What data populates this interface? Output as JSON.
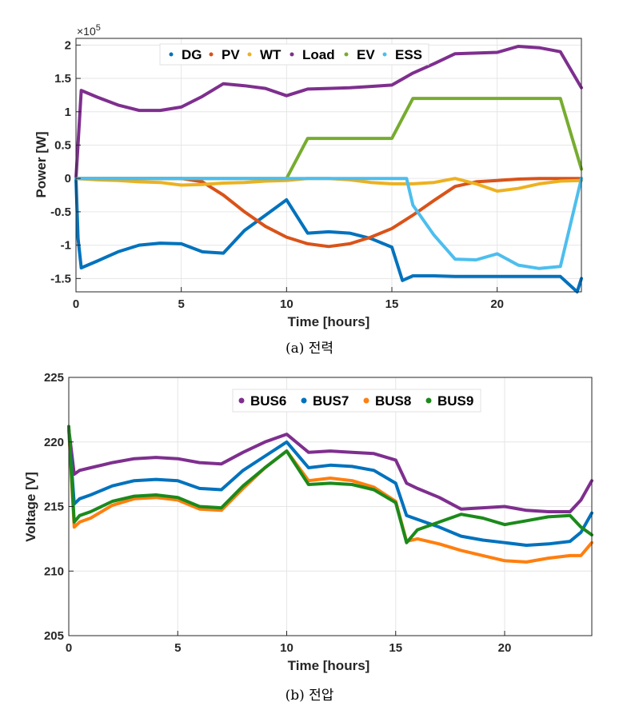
{
  "colors": {
    "blue": "#0072BD",
    "orange": "#D95319",
    "yellow": "#EDB120",
    "purple": "#7E2F8E",
    "green": "#77AC30",
    "cyan": "#4DBEEE",
    "bus_orange": "#FF7F0E",
    "bus_green": "#1B8A1B"
  },
  "chart_data": [
    {
      "type": "line",
      "caption": "(a) 전력",
      "xlabel": "Time [hours]",
      "ylabel": "Power [W]",
      "exponent": "×10",
      "exponent_power": "5",
      "xlim": [
        0,
        24
      ],
      "ylim": [
        -1.7,
        2.1
      ],
      "xticks": [
        0,
        5,
        10,
        15,
        20
      ],
      "xtick_labels": [
        "0",
        "5",
        "10",
        "15",
        "20"
      ],
      "yticks": [
        -1.5,
        -1,
        -0.5,
        0,
        0.5,
        1,
        1.5,
        2
      ],
      "ytick_labels": [
        "-1.5",
        "-1",
        "-0.5",
        "0",
        "0.5",
        "1",
        "1.5",
        "2"
      ],
      "legend_position": "top",
      "grid": true,
      "series": [
        {
          "name": "DG",
          "color": "blue",
          "x": [
            0,
            0.1,
            0.25,
            1,
            2,
            3,
            4,
            5,
            6,
            7,
            8,
            9,
            10,
            11,
            12,
            13,
            14,
            15,
            15.5,
            16,
            17,
            18,
            19,
            20,
            21,
            22,
            23,
            23.8,
            24
          ],
          "y": [
            0,
            -0.9,
            -1.34,
            -1.24,
            -1.1,
            -1.0,
            -0.97,
            -0.98,
            -1.1,
            -1.12,
            -0.78,
            -0.55,
            -0.32,
            -0.82,
            -0.8,
            -0.82,
            -0.9,
            -1.03,
            -1.53,
            -1.46,
            -1.46,
            -1.47,
            -1.47,
            -1.47,
            -1.47,
            -1.47,
            -1.47,
            -1.7,
            -1.5
          ]
        },
        {
          "name": "PV",
          "color": "orange",
          "x": [
            0,
            5,
            6,
            7,
            8,
            9,
            10,
            11,
            12,
            13,
            14,
            15,
            16,
            17,
            18,
            19,
            20,
            21,
            22,
            23,
            24
          ],
          "y": [
            0,
            0,
            -0.05,
            -0.25,
            -0.5,
            -0.72,
            -0.88,
            -0.98,
            -1.02,
            -0.98,
            -0.88,
            -0.75,
            -0.55,
            -0.33,
            -0.12,
            -0.05,
            -0.03,
            -0.01,
            0,
            0,
            0
          ]
        },
        {
          "name": "WT",
          "color": "yellow",
          "x": [
            0,
            1,
            2,
            3,
            4,
            5,
            6,
            7,
            8,
            9,
            10,
            11,
            12,
            13,
            14,
            15,
            16,
            17,
            18,
            19,
            20,
            21,
            22,
            23,
            24
          ],
          "y": [
            0,
            -0.02,
            -0.03,
            -0.05,
            -0.06,
            -0.1,
            -0.09,
            -0.07,
            -0.06,
            -0.04,
            -0.03,
            0,
            0,
            -0.02,
            -0.06,
            -0.08,
            -0.08,
            -0.06,
            0,
            -0.08,
            -0.19,
            -0.15,
            -0.08,
            -0.04,
            -0.03
          ]
        },
        {
          "name": "Load",
          "color": "purple",
          "x": [
            0,
            0.25,
            1,
            2,
            3,
            4,
            5,
            6,
            7,
            8,
            9,
            10,
            11,
            12,
            13,
            14,
            15,
            16,
            17,
            18,
            19,
            20,
            21,
            22,
            23,
            24
          ],
          "y": [
            0,
            1.32,
            1.22,
            1.1,
            1.02,
            1.02,
            1.07,
            1.23,
            1.42,
            1.39,
            1.35,
            1.24,
            1.34,
            1.35,
            1.36,
            1.38,
            1.4,
            1.58,
            1.72,
            1.87,
            1.88,
            1.89,
            1.98,
            1.96,
            1.9,
            1.36
          ]
        },
        {
          "name": "EV",
          "color": "green",
          "x": [
            0,
            10,
            11,
            12,
            13,
            14,
            15,
            16,
            17,
            18,
            19,
            20,
            21,
            22,
            23,
            24
          ],
          "y": [
            0,
            0,
            0.6,
            0.6,
            0.6,
            0.6,
            0.6,
            1.2,
            1.2,
            1.2,
            1.2,
            1.2,
            1.2,
            1.2,
            1.2,
            0.14
          ]
        },
        {
          "name": "ESS",
          "color": "cyan",
          "x": [
            0,
            10,
            12,
            13,
            14,
            15,
            15.7,
            16,
            17,
            18,
            19,
            20,
            21,
            22,
            23,
            24
          ],
          "y": [
            0,
            0,
            0,
            0,
            0,
            0,
            0,
            -0.4,
            -0.85,
            -1.21,
            -1.22,
            -1.13,
            -1.3,
            -1.35,
            -1.32,
            0
          ]
        }
      ]
    },
    {
      "type": "line",
      "caption": "(b) 전압",
      "xlabel": "Time [hours]",
      "ylabel": "Voltage [V]",
      "xlim": [
        0,
        24
      ],
      "ylim": [
        205,
        225
      ],
      "xticks": [
        0,
        5,
        10,
        15,
        20
      ],
      "xtick_labels": [
        "0",
        "5",
        "10",
        "15",
        "20"
      ],
      "yticks": [
        205,
        210,
        215,
        220,
        225
      ],
      "ytick_labels": [
        "205",
        "210",
        "215",
        "220",
        "225"
      ],
      "legend_position": "top-right",
      "grid": true,
      "series": [
        {
          "name": "BUS6",
          "color": "purple",
          "x": [
            0,
            0.25,
            0.5,
            1,
            2,
            3,
            4,
            5,
            6,
            7,
            8,
            9,
            10,
            11,
            12,
            13,
            14,
            15,
            15.5,
            16,
            17,
            18,
            19,
            20,
            21,
            22,
            23,
            23.5,
            24
          ],
          "y": [
            221,
            217.5,
            217.8,
            218.0,
            218.4,
            218.7,
            218.8,
            218.7,
            218.4,
            218.3,
            219.2,
            220.0,
            220.6,
            219.2,
            219.3,
            219.2,
            219.1,
            218.6,
            216.8,
            216.4,
            215.7,
            214.8,
            214.9,
            215.0,
            214.7,
            214.6,
            214.6,
            215.5,
            217.0
          ]
        },
        {
          "name": "BUS7",
          "color": "blue",
          "x": [
            0,
            0.25,
            0.5,
            1,
            2,
            3,
            4,
            5,
            6,
            7,
            8,
            9,
            10,
            11,
            12,
            13,
            14,
            15,
            15.5,
            16,
            17,
            18,
            19,
            20,
            21,
            22,
            23,
            23.5,
            24
          ],
          "y": [
            221,
            215.2,
            215.6,
            215.9,
            216.6,
            217.0,
            217.1,
            217.0,
            216.4,
            216.3,
            217.8,
            218.9,
            220.0,
            218.0,
            218.2,
            218.1,
            217.8,
            216.8,
            214.3,
            214.0,
            213.4,
            212.7,
            212.4,
            212.2,
            212.0,
            212.1,
            212.3,
            213.0,
            214.5
          ]
        },
        {
          "name": "BUS8",
          "color": "bus_orange",
          "x": [
            0,
            0.25,
            0.5,
            1,
            2,
            3,
            4,
            5,
            6,
            7,
            8,
            9,
            10,
            11,
            12,
            13,
            14,
            15,
            15.5,
            16,
            17,
            18,
            19,
            20,
            21,
            22,
            23,
            23.5,
            24
          ],
          "y": [
            221,
            213.4,
            213.8,
            214.1,
            215.1,
            215.6,
            215.7,
            215.5,
            214.8,
            214.7,
            216.4,
            218.0,
            219.3,
            217.0,
            217.2,
            217.0,
            216.5,
            215.4,
            212.3,
            212.5,
            212.1,
            211.6,
            211.2,
            210.8,
            210.7,
            211.0,
            211.2,
            211.2,
            212.2
          ]
        },
        {
          "name": "BUS9",
          "color": "bus_green",
          "x": [
            0,
            0.25,
            0.5,
            1,
            2,
            3,
            4,
            5,
            6,
            7,
            8,
            9,
            10,
            11,
            12,
            13,
            14,
            15,
            15.5,
            16,
            17,
            18,
            19,
            20,
            21,
            22,
            23,
            23.5,
            24
          ],
          "y": [
            221.2,
            213.8,
            214.3,
            214.6,
            215.4,
            215.8,
            215.9,
            215.7,
            215.0,
            214.9,
            216.6,
            218.0,
            219.3,
            216.7,
            216.8,
            216.7,
            216.3,
            215.3,
            212.2,
            213.2,
            213.8,
            214.4,
            214.1,
            213.6,
            213.9,
            214.2,
            214.3,
            213.4,
            212.8
          ]
        }
      ]
    }
  ]
}
